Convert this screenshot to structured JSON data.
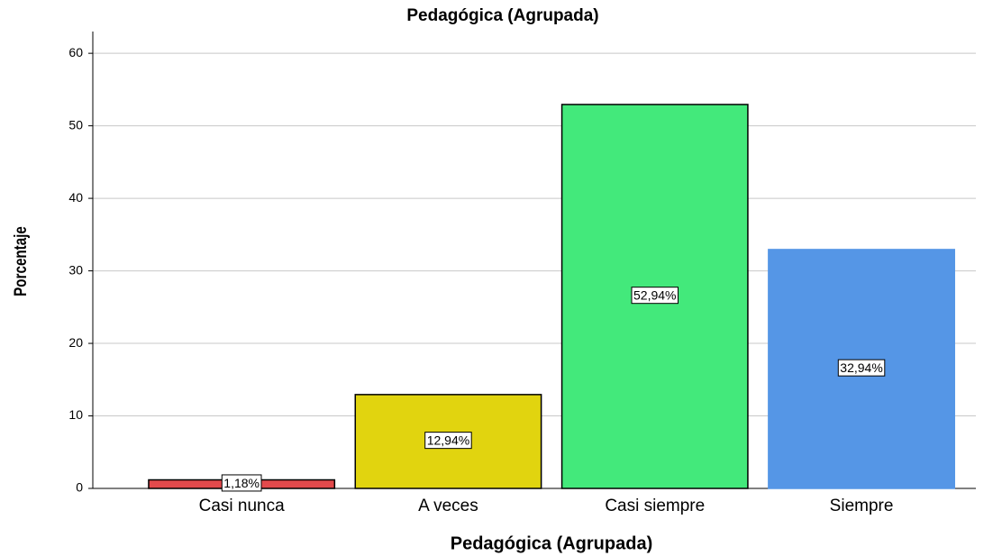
{
  "chart_data": {
    "type": "bar",
    "title": "Pedagógica (Agrupada)",
    "x_label": "Pedagógica (Agrupada)",
    "y_label": "Porcentaje",
    "categories": [
      "Casi nunca",
      "A veces",
      "Casi siempre",
      "Siempre"
    ],
    "values": [
      1.18,
      12.94,
      52.94,
      32.94
    ],
    "value_labels": [
      "1,18%",
      "12,94%",
      "52,94%",
      "32,94%"
    ],
    "colors": [
      "#e34a4c",
      "#e1d40f",
      "#43e97b",
      "#5596e6"
    ],
    "edgecolors": [
      "#000000",
      "#000000",
      "#000000",
      "#5596e6"
    ],
    "ylim": [
      0,
      63
    ],
    "yticks": [
      0,
      10,
      20,
      30,
      40,
      50,
      60
    ],
    "grid": true
  }
}
